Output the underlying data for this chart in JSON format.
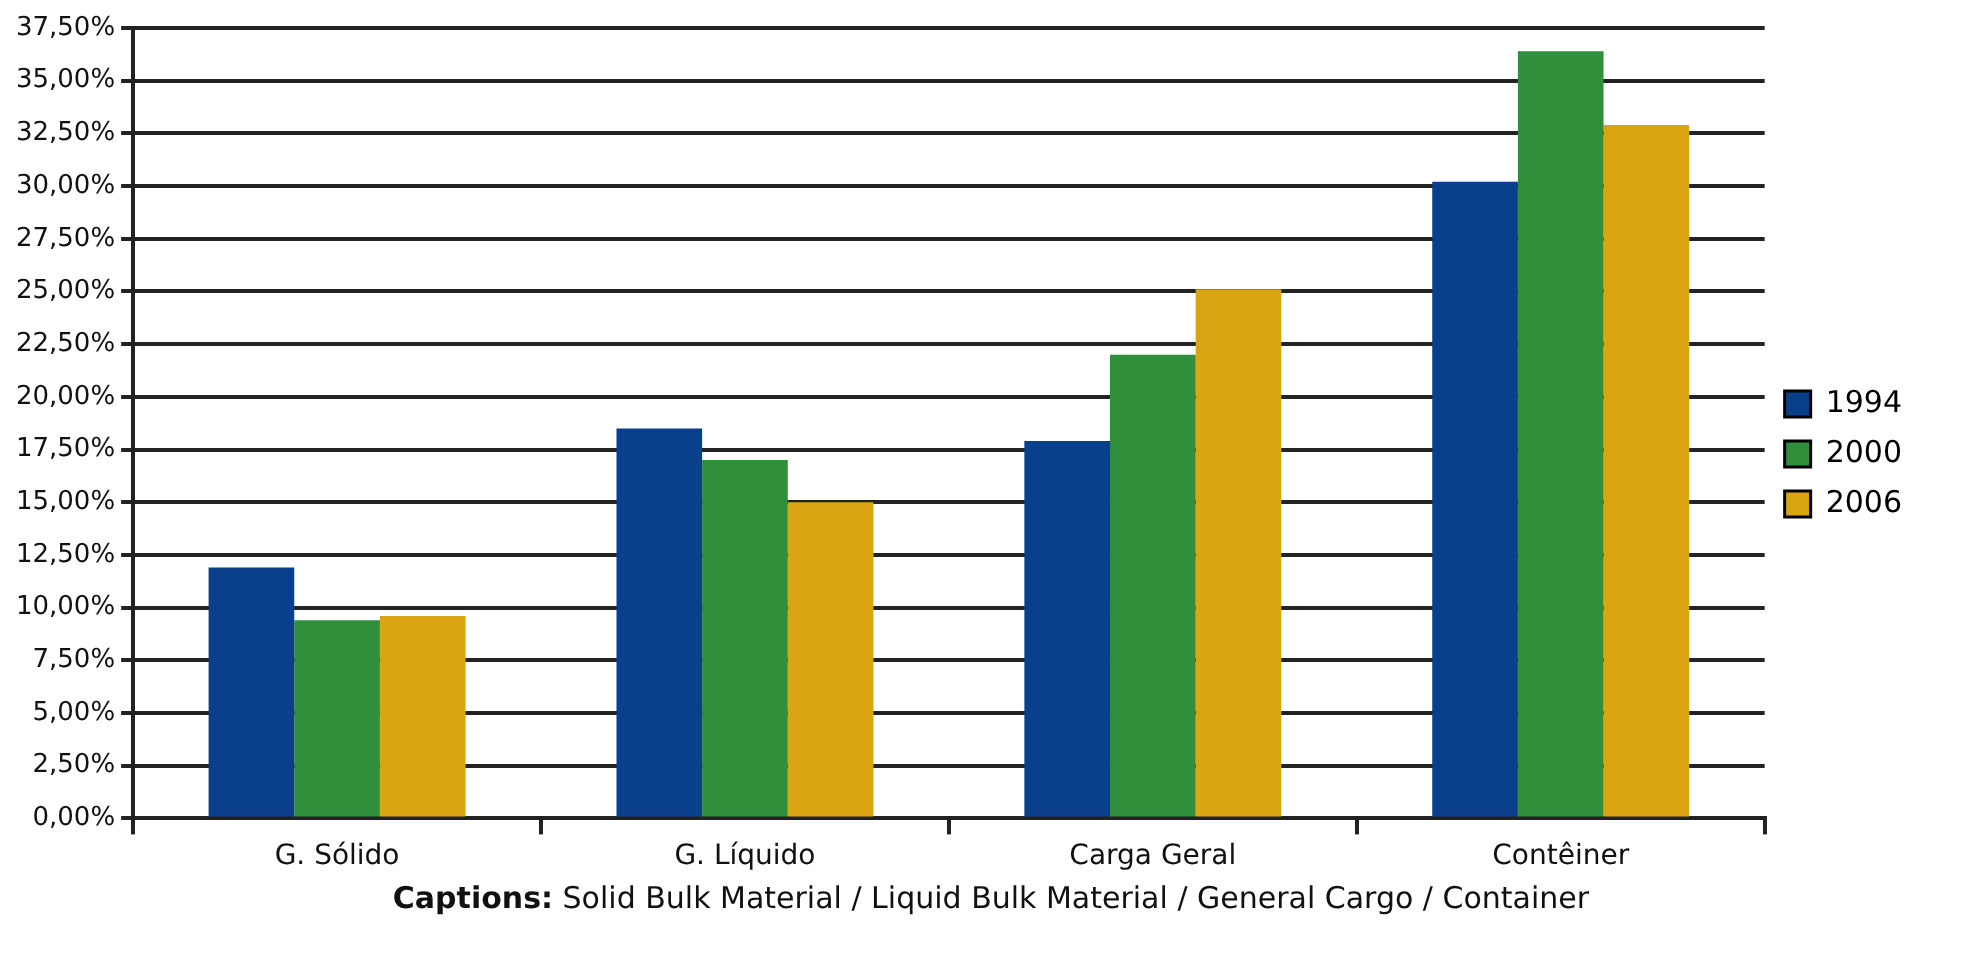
{
  "chart_data": {
    "type": "bar",
    "categories": [
      "G. Sólido",
      "G. Líquido",
      "Carga Geral",
      "Contêiner"
    ],
    "series": [
      {
        "name": "1994",
        "color": "#0a3f8c",
        "values": [
          11.9,
          18.5,
          17.9,
          30.2
        ]
      },
      {
        "name": "2000",
        "color": "#2f8f3a",
        "values": [
          9.4,
          17.0,
          22.0,
          36.4
        ]
      },
      {
        "name": "2006",
        "color": "#dba413",
        "values": [
          9.6,
          15.0,
          25.1,
          32.9
        ]
      }
    ],
    "ylim": [
      0,
      37.5
    ],
    "yticks": [
      {
        "value": 0,
        "label": "0,00%"
      },
      {
        "value": 2.5,
        "label": "2,50%"
      },
      {
        "value": 5,
        "label": "5,00%"
      },
      {
        "value": 7.5,
        "label": "7,50%"
      },
      {
        "value": 10,
        "label": "10,00%"
      },
      {
        "value": 12.5,
        "label": "12,50%"
      },
      {
        "value": 15,
        "label": "15,00%"
      },
      {
        "value": 17.5,
        "label": "17,50%"
      },
      {
        "value": 20,
        "label": "20,00%"
      },
      {
        "value": 22.5,
        "label": "22,50%"
      },
      {
        "value": 25,
        "label": "25,00%"
      },
      {
        "value": 27.5,
        "label": "27,50%"
      },
      {
        "value": 30,
        "label": "30,00%"
      },
      {
        "value": 32.5,
        "label": "32,50%"
      },
      {
        "value": 35,
        "label": "35,00%"
      },
      {
        "value": 37.5,
        "label": "37,50%"
      }
    ],
    "grid": "y",
    "legend": "right",
    "annotations": [
      "Captions: Solid Bulk Material / Liquid Bulk Material / General Cargo / Container"
    ]
  }
}
